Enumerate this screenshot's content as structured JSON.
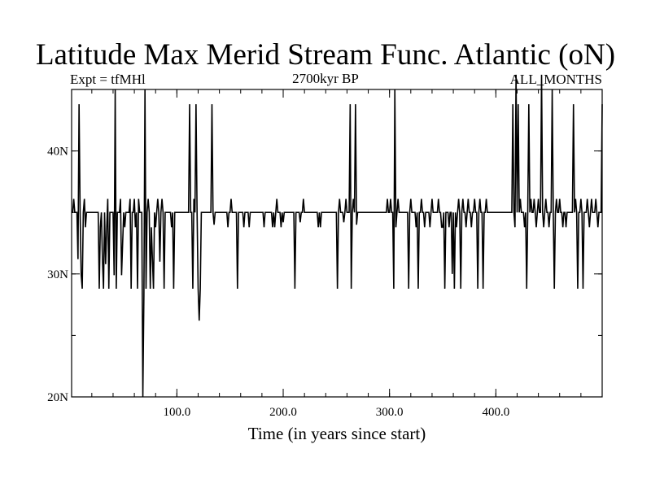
{
  "chart_data": {
    "type": "line",
    "title": "Latitude Max Merid Stream Func. Atlantic (oN)",
    "subtitle_left": "Expt = tfMHl",
    "subtitle_center": "2700kyr BP",
    "subtitle_right": "ALL_MONTHS",
    "xlabel": "Time (in years since start)",
    "ylabel": "",
    "xlim": [
      1,
      500
    ],
    "ylim": [
      20,
      45
    ],
    "x_ticks": [
      {
        "value": 100,
        "label": "100.0"
      },
      {
        "value": 200,
        "label": "200.0"
      },
      {
        "value": 300,
        "label": "300.0"
      },
      {
        "value": 400,
        "label": "400.0"
      }
    ],
    "x_minor_step": 20,
    "y_ticks": [
      {
        "value": 20,
        "label": "20N"
      },
      {
        "value": 30,
        "label": "30N"
      },
      {
        "value": 40,
        "label": "40N"
      }
    ],
    "y_minor_step": 5,
    "grid": false,
    "baseline": 35,
    "spikes": [
      [
        3,
        36.1
      ],
      [
        7,
        31.2
      ],
      [
        8,
        43.8
      ],
      [
        10,
        29.9
      ],
      [
        11,
        28.8
      ],
      [
        13,
        36.1
      ],
      [
        14,
        33.8
      ],
      [
        27,
        28.8
      ],
      [
        28,
        33.8
      ],
      [
        30,
        31.2
      ],
      [
        31,
        28.8
      ],
      [
        33,
        30.8
      ],
      [
        34,
        33.7
      ],
      [
        35,
        36.1
      ],
      [
        36,
        28.8
      ],
      [
        41,
        29.9
      ],
      [
        42,
        45.0
      ],
      [
        43,
        28.8
      ],
      [
        47,
        36.1
      ],
      [
        48,
        29.9
      ],
      [
        49,
        32.5
      ],
      [
        51,
        33.8
      ],
      [
        56,
        36.1
      ],
      [
        57,
        28.8
      ],
      [
        60,
        36.1
      ],
      [
        61,
        33.8
      ],
      [
        63,
        28.8
      ],
      [
        64,
        36.1
      ],
      [
        68,
        20.0
      ],
      [
        69,
        28.2
      ],
      [
        70,
        45.0
      ],
      [
        71,
        28.8
      ],
      [
        73,
        36.1
      ],
      [
        75,
        28.8
      ],
      [
        76,
        33.8
      ],
      [
        77,
        31.2
      ],
      [
        78,
        28.8
      ],
      [
        80,
        33.8
      ],
      [
        82,
        36.1
      ],
      [
        84,
        31.0
      ],
      [
        86,
        36.1
      ],
      [
        88,
        28.8
      ],
      [
        95,
        33.8
      ],
      [
        97,
        28.8
      ],
      [
        112,
        43.8
      ],
      [
        115,
        28.8
      ],
      [
        116,
        36.1
      ],
      [
        118,
        43.8
      ],
      [
        120,
        28.8
      ],
      [
        121,
        26.2
      ],
      [
        122,
        28.8
      ],
      [
        133,
        43.8
      ],
      [
        135,
        34.0
      ],
      [
        148,
        33.8
      ],
      [
        151,
        36.1
      ],
      [
        157,
        28.8
      ],
      [
        163,
        33.8
      ],
      [
        168,
        33.8
      ],
      [
        182,
        33.8
      ],
      [
        190,
        33.8
      ],
      [
        192,
        33.8
      ],
      [
        194,
        36.1
      ],
      [
        198,
        33.8
      ],
      [
        200,
        34.2
      ],
      [
        211,
        28.8
      ],
      [
        216,
        34.2
      ],
      [
        219,
        36.1
      ],
      [
        233,
        33.8
      ],
      [
        235,
        33.8
      ],
      [
        251,
        28.8
      ],
      [
        253,
        36.1
      ],
      [
        257,
        34.2
      ],
      [
        259,
        36.1
      ],
      [
        263,
        43.8
      ],
      [
        264,
        28.8
      ],
      [
        266,
        36.1
      ],
      [
        268,
        43.8
      ],
      [
        269,
        34.0
      ],
      [
        298,
        36.1
      ],
      [
        301,
        36.1
      ],
      [
        304,
        28.8
      ],
      [
        305,
        45.0
      ],
      [
        306,
        33.8
      ],
      [
        308,
        36.1
      ],
      [
        318,
        28.8
      ],
      [
        320,
        36.1
      ],
      [
        325,
        33.8
      ],
      [
        327,
        28.8
      ],
      [
        330,
        36.1
      ],
      [
        333,
        33.8
      ],
      [
        338,
        33.8
      ],
      [
        340,
        36.1
      ],
      [
        346,
        36.1
      ],
      [
        349,
        33.8
      ],
      [
        350,
        33.8
      ],
      [
        352,
        28.8
      ],
      [
        356,
        33.8
      ],
      [
        359,
        30.0
      ],
      [
        361,
        28.8
      ],
      [
        363,
        33.8
      ],
      [
        365,
        36.1
      ],
      [
        367,
        28.8
      ],
      [
        369,
        36.1
      ],
      [
        372,
        33.8
      ],
      [
        374,
        36.1
      ],
      [
        377,
        33.8
      ],
      [
        380,
        36.1
      ],
      [
        383,
        28.8
      ],
      [
        385,
        36.1
      ],
      [
        388,
        28.8
      ],
      [
        391,
        36.1
      ],
      [
        416,
        43.8
      ],
      [
        418,
        33.8
      ],
      [
        419,
        46.2
      ],
      [
        421,
        43.8
      ],
      [
        423,
        36.1
      ],
      [
        427,
        33.8
      ],
      [
        429,
        28.8
      ],
      [
        431,
        43.8
      ],
      [
        433,
        36.1
      ],
      [
        436,
        36.1
      ],
      [
        438,
        33.8
      ],
      [
        440,
        36.1
      ],
      [
        443,
        46.2
      ],
      [
        445,
        33.8
      ],
      [
        447,
        36.1
      ],
      [
        450,
        33.8
      ],
      [
        453,
        45.0
      ],
      [
        455,
        28.8
      ],
      [
        457,
        36.1
      ],
      [
        460,
        36.1
      ],
      [
        463,
        33.8
      ],
      [
        466,
        33.8
      ],
      [
        473,
        43.8
      ],
      [
        475,
        36.1
      ],
      [
        477,
        28.8
      ],
      [
        480,
        36.1
      ],
      [
        482,
        28.8
      ],
      [
        486,
        36.1
      ],
      [
        488,
        33.8
      ],
      [
        490,
        36.1
      ],
      [
        494,
        36.1
      ],
      [
        496,
        33.8
      ],
      [
        500,
        43.8
      ]
    ],
    "line_color": "#000000"
  }
}
